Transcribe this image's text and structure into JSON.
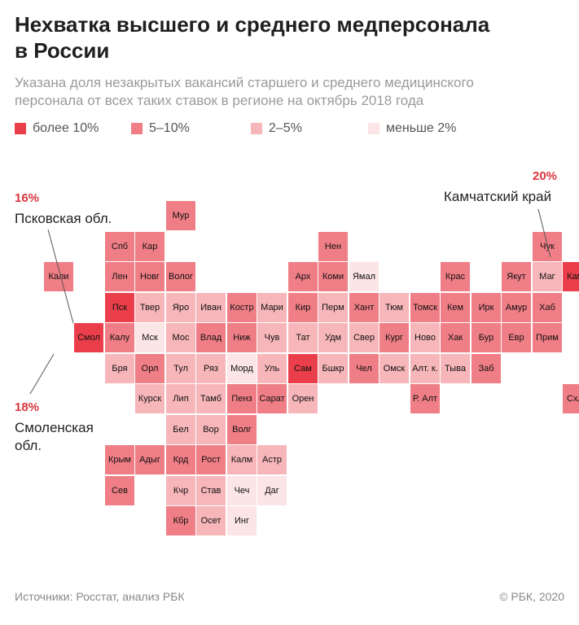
{
  "title_line1": "Нехватка высшего и среднего медперсонала",
  "title_line2": "в России",
  "subtitle_line1": "Указана доля незакрытых вакансий старшего и среднего медицинского",
  "subtitle_line2": "персонала от всех таких ставок в регионе на октябрь 2018 года",
  "colors": {
    "c1": "#ea3f4b",
    "c2": "#f07e86",
    "c3": "#f7b6ba",
    "c4": "#fce5e6"
  },
  "legend": [
    {
      "label": "более 10%",
      "cls": "c1"
    },
    {
      "label": "5–10%",
      "cls": "c2"
    },
    {
      "label": "2–5%",
      "cls": "c3"
    },
    {
      "label": "меньше 2%",
      "cls": "c4"
    }
  ],
  "callouts": {
    "pskov": {
      "pct": "16%",
      "name": "Псковская обл."
    },
    "smolensk": {
      "pct": "18%",
      "name_line1": "Смоленская",
      "name_line2": "обл."
    },
    "kamchatka": {
      "pct": "20%",
      "name": "Камчатский край"
    }
  },
  "regions": [
    {
      "label": "Мур",
      "cls": "c2",
      "col": 5,
      "row": 0
    },
    {
      "label": "Спб",
      "cls": "c2",
      "col": 3,
      "row": 1
    },
    {
      "label": "Кар",
      "cls": "c2",
      "col": 4,
      "row": 1
    },
    {
      "label": "Нен",
      "cls": "c2",
      "col": 10,
      "row": 1
    },
    {
      "label": "Чук",
      "cls": "c2",
      "col": 17,
      "row": 1
    },
    {
      "label": "Кали",
      "cls": "c2",
      "col": 1,
      "row": 2
    },
    {
      "label": "Лен",
      "cls": "c2",
      "col": 3,
      "row": 2
    },
    {
      "label": "Новг",
      "cls": "c2",
      "col": 4,
      "row": 2
    },
    {
      "label": "Волог",
      "cls": "c2",
      "col": 5,
      "row": 2
    },
    {
      "label": "Арх",
      "cls": "c2",
      "col": 9,
      "row": 2
    },
    {
      "label": "Коми",
      "cls": "c2",
      "col": 10,
      "row": 2
    },
    {
      "label": "Ямал",
      "cls": "c4",
      "col": 11,
      "row": 2
    },
    {
      "label": "Крас",
      "cls": "c2",
      "col": 14,
      "row": 2
    },
    {
      "label": "Якут",
      "cls": "c2",
      "col": 16,
      "row": 2
    },
    {
      "label": "Маг",
      "cls": "c3",
      "col": 17,
      "row": 2
    },
    {
      "label": "Камч",
      "cls": "c1",
      "col": 18,
      "row": 2
    },
    {
      "label": "Пск",
      "cls": "c1",
      "col": 3,
      "row": 3
    },
    {
      "label": "Твер",
      "cls": "c3",
      "col": 4,
      "row": 3
    },
    {
      "label": "Яро",
      "cls": "c3",
      "col": 5,
      "row": 3
    },
    {
      "label": "Иван",
      "cls": "c3",
      "col": 6,
      "row": 3
    },
    {
      "label": "Костр",
      "cls": "c2",
      "col": 7,
      "row": 3
    },
    {
      "label": "Мари",
      "cls": "c3",
      "col": 8,
      "row": 3
    },
    {
      "label": "Кир",
      "cls": "c2",
      "col": 9,
      "row": 3
    },
    {
      "label": "Перм",
      "cls": "c3",
      "col": 10,
      "row": 3
    },
    {
      "label": "Хант",
      "cls": "c2",
      "col": 11,
      "row": 3
    },
    {
      "label": "Тюм",
      "cls": "c3",
      "col": 12,
      "row": 3
    },
    {
      "label": "Томск",
      "cls": "c2",
      "col": 13,
      "row": 3
    },
    {
      "label": "Кем",
      "cls": "c2",
      "col": 14,
      "row": 3
    },
    {
      "label": "Ирк",
      "cls": "c2",
      "col": 15,
      "row": 3
    },
    {
      "label": "Амур",
      "cls": "c2",
      "col": 16,
      "row": 3
    },
    {
      "label": "Хаб",
      "cls": "c2",
      "col": 17,
      "row": 3
    },
    {
      "label": "Смол",
      "cls": "c1",
      "col": 2,
      "row": 4
    },
    {
      "label": "Калу",
      "cls": "c2",
      "col": 3,
      "row": 4
    },
    {
      "label": "Мск",
      "cls": "c4",
      "col": 4,
      "row": 4
    },
    {
      "label": "Мос",
      "cls": "c3",
      "col": 5,
      "row": 4
    },
    {
      "label": "Влад",
      "cls": "c2",
      "col": 6,
      "row": 4
    },
    {
      "label": "Ниж",
      "cls": "c2",
      "col": 7,
      "row": 4
    },
    {
      "label": "Чув",
      "cls": "c3",
      "col": 8,
      "row": 4
    },
    {
      "label": "Тат",
      "cls": "c3",
      "col": 9,
      "row": 4
    },
    {
      "label": "Удм",
      "cls": "c3",
      "col": 10,
      "row": 4
    },
    {
      "label": "Свер",
      "cls": "c3",
      "col": 11,
      "row": 4
    },
    {
      "label": "Кург",
      "cls": "c2",
      "col": 12,
      "row": 4
    },
    {
      "label": "Ново",
      "cls": "c3",
      "col": 13,
      "row": 4
    },
    {
      "label": "Хак",
      "cls": "c2",
      "col": 14,
      "row": 4
    },
    {
      "label": "Бур",
      "cls": "c2",
      "col": 15,
      "row": 4
    },
    {
      "label": "Евр",
      "cls": "c2",
      "col": 16,
      "row": 4
    },
    {
      "label": "Прим",
      "cls": "c2",
      "col": 17,
      "row": 4
    },
    {
      "label": "Бря",
      "cls": "c3",
      "col": 3,
      "row": 5
    },
    {
      "label": "Орл",
      "cls": "c2",
      "col": 4,
      "row": 5
    },
    {
      "label": "Тул",
      "cls": "c3",
      "col": 5,
      "row": 5
    },
    {
      "label": "Ряз",
      "cls": "c3",
      "col": 6,
      "row": 5
    },
    {
      "label": "Морд",
      "cls": "c4",
      "col": 7,
      "row": 5
    },
    {
      "label": "Уль",
      "cls": "c3",
      "col": 8,
      "row": 5
    },
    {
      "label": "Сам",
      "cls": "c1",
      "col": 9,
      "row": 5
    },
    {
      "label": "Бшкр",
      "cls": "c3",
      "col": 10,
      "row": 5
    },
    {
      "label": "Чел",
      "cls": "c2",
      "col": 11,
      "row": 5
    },
    {
      "label": "Омск",
      "cls": "c3",
      "col": 12,
      "row": 5
    },
    {
      "label": "Алт. к.",
      "cls": "c3",
      "col": 13,
      "row": 5
    },
    {
      "label": "Тыва",
      "cls": "c3",
      "col": 14,
      "row": 5
    },
    {
      "label": "Заб",
      "cls": "c2",
      "col": 15,
      "row": 5
    },
    {
      "label": "Курск",
      "cls": "c3",
      "col": 4,
      "row": 6
    },
    {
      "label": "Лип",
      "cls": "c3",
      "col": 5,
      "row": 6
    },
    {
      "label": "Тамб",
      "cls": "c3",
      "col": 6,
      "row": 6
    },
    {
      "label": "Пенз",
      "cls": "c2",
      "col": 7,
      "row": 6
    },
    {
      "label": "Сарат",
      "cls": "c2",
      "col": 8,
      "row": 6
    },
    {
      "label": "Орен",
      "cls": "c3",
      "col": 9,
      "row": 6
    },
    {
      "label": "Р. Алт",
      "cls": "c2",
      "col": 13,
      "row": 6
    },
    {
      "label": "Схлн",
      "cls": "c2",
      "col": 18,
      "row": 6
    },
    {
      "label": "Бел",
      "cls": "c3",
      "col": 5,
      "row": 7
    },
    {
      "label": "Вор",
      "cls": "c3",
      "col": 6,
      "row": 7
    },
    {
      "label": "Волг",
      "cls": "c2",
      "col": 7,
      "row": 7
    },
    {
      "label": "Крым",
      "cls": "c2",
      "col": 3,
      "row": 8
    },
    {
      "label": "Адыг",
      "cls": "c2",
      "col": 4,
      "row": 8
    },
    {
      "label": "Крд",
      "cls": "c2",
      "col": 5,
      "row": 8
    },
    {
      "label": "Рост",
      "cls": "c2",
      "col": 6,
      "row": 8
    },
    {
      "label": "Калм",
      "cls": "c3",
      "col": 7,
      "row": 8
    },
    {
      "label": "Астр",
      "cls": "c3",
      "col": 8,
      "row": 8
    },
    {
      "label": "Сев",
      "cls": "c2",
      "col": 3,
      "row": 9
    },
    {
      "label": "Кчр",
      "cls": "c3",
      "col": 5,
      "row": 9
    },
    {
      "label": "Став",
      "cls": "c3",
      "col": 6,
      "row": 9
    },
    {
      "label": "Чеч",
      "cls": "c4",
      "col": 7,
      "row": 9
    },
    {
      "label": "Даг",
      "cls": "c4",
      "col": 8,
      "row": 9
    },
    {
      "label": "Кбр",
      "cls": "c2",
      "col": 5,
      "row": 10
    },
    {
      "label": "Осет",
      "cls": "c3",
      "col": 6,
      "row": 10
    },
    {
      "label": "Инг",
      "cls": "c4",
      "col": 7,
      "row": 10
    }
  ],
  "footer": {
    "source": "Источники: Росстат, анализ РБК",
    "copyright": "© РБК, 2020"
  }
}
